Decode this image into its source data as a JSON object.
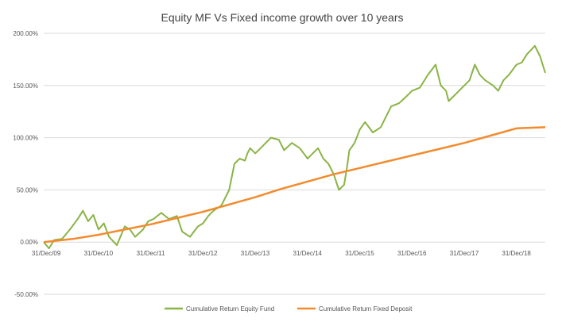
{
  "chart_data": {
    "type": "line",
    "title": "Equity MF Vs Fixed income growth over 10 years",
    "xlabel": "",
    "ylabel": "",
    "ylim": [
      -0.5,
      2.0
    ],
    "y_ticks": [
      2.0,
      1.5,
      1.0,
      0.5,
      0.0,
      -0.5
    ],
    "y_tick_labels": [
      "200.00%",
      "150.00%",
      "100.00%",
      "50.00%",
      "0.00%",
      "-50.00%"
    ],
    "x_tick_labels": [
      "31/Dec/09",
      "31/Dec/10",
      "31/Dec/11",
      "31/Dec/12",
      "31/Dec/13",
      "31/Dec/14",
      "31/Dec/15",
      "31/Dec/16",
      "31/Dec/17",
      "31/Dec/18"
    ],
    "x_range_years": [
      2009.95,
      2019.55
    ],
    "grid": "horizontal",
    "legend_position": "bottom",
    "series": [
      {
        "name": "Cumulative Return Equity Fund",
        "color": "#8ab446",
        "x": [
          2009.95,
          2010.05,
          2010.15,
          2010.3,
          2010.45,
          2010.6,
          2010.7,
          2010.8,
          2010.9,
          2011.0,
          2011.1,
          2011.2,
          2011.35,
          2011.5,
          2011.6,
          2011.7,
          2011.85,
          2011.95,
          2012.05,
          2012.2,
          2012.35,
          2012.5,
          2012.6,
          2012.75,
          2012.9,
          2013.0,
          2013.1,
          2013.2,
          2013.35,
          2013.5,
          2013.6,
          2013.7,
          2013.8,
          2013.85,
          2013.9,
          2014.0,
          2014.1,
          2014.2,
          2014.3,
          2014.45,
          2014.55,
          2014.7,
          2014.85,
          2015.0,
          2015.1,
          2015.2,
          2015.3,
          2015.4,
          2015.5,
          2015.6,
          2015.7,
          2015.75,
          2015.8,
          2015.9,
          2016.0,
          2016.1,
          2016.25,
          2016.4,
          2016.5,
          2016.6,
          2016.75,
          2016.9,
          2017.0,
          2017.15,
          2017.3,
          2017.45,
          2017.55,
          2017.65,
          2017.7,
          2017.8,
          2017.9,
          2018.0,
          2018.1,
          2018.2,
          2018.3,
          2018.4,
          2018.55,
          2018.65,
          2018.75,
          2018.85,
          2019.0,
          2019.1,
          2019.2,
          2019.35,
          2019.45,
          2019.55
        ],
        "values": [
          0.0,
          -0.06,
          0.02,
          0.03,
          0.12,
          0.22,
          0.3,
          0.2,
          0.26,
          0.12,
          0.18,
          0.05,
          -0.03,
          0.15,
          0.12,
          0.05,
          0.12,
          0.2,
          0.22,
          0.28,
          0.22,
          0.25,
          0.1,
          0.05,
          0.15,
          0.18,
          0.25,
          0.3,
          0.35,
          0.5,
          0.75,
          0.8,
          0.78,
          0.85,
          0.9,
          0.85,
          0.9,
          0.95,
          1.0,
          0.98,
          0.88,
          0.95,
          0.9,
          0.8,
          0.85,
          0.9,
          0.8,
          0.75,
          0.65,
          0.5,
          0.55,
          0.7,
          0.88,
          0.95,
          1.08,
          1.15,
          1.05,
          1.1,
          1.2,
          1.3,
          1.33,
          1.4,
          1.45,
          1.48,
          1.6,
          1.7,
          1.5,
          1.45,
          1.35,
          1.4,
          1.45,
          1.5,
          1.55,
          1.7,
          1.6,
          1.55,
          1.5,
          1.45,
          1.55,
          1.6,
          1.7,
          1.72,
          1.8,
          1.88,
          1.78,
          1.62
        ]
      },
      {
        "name": "Cumulative Return Fixed Deposit",
        "color": "#f28b2d",
        "x": [
          2009.95,
          2010.5,
          2011.0,
          2011.5,
          2012.0,
          2012.5,
          2013.0,
          2013.5,
          2014.0,
          2014.5,
          2015.0,
          2015.5,
          2016.0,
          2016.5,
          2017.0,
          2017.5,
          2018.0,
          2018.5,
          2019.0,
          2019.55
        ],
        "values": [
          0.0,
          0.03,
          0.07,
          0.12,
          0.17,
          0.23,
          0.29,
          0.36,
          0.43,
          0.51,
          0.58,
          0.65,
          0.71,
          0.77,
          0.83,
          0.89,
          0.95,
          1.02,
          1.09,
          1.1
        ]
      }
    ]
  }
}
